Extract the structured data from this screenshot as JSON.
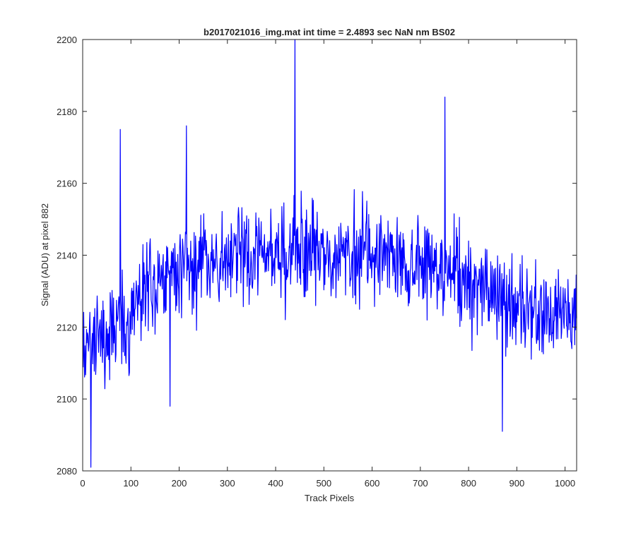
{
  "chart_data": {
    "type": "line",
    "title": "b2017021016_img.mat int time = 2.4893 sec  NaN nm BS02",
    "xlabel": "Track Pixels",
    "ylabel": "Signal (ADU) at pixel 882",
    "xlim": [
      0,
      1024
    ],
    "ylim": [
      2080,
      2200
    ],
    "xticks": [
      0,
      100,
      200,
      300,
      400,
      500,
      600,
      700,
      800,
      900,
      1000
    ],
    "yticks": [
      2080,
      2100,
      2120,
      2140,
      2160,
      2180,
      2200
    ],
    "grid": false,
    "legend": false,
    "line_color": "#0000ff",
    "series": [
      {
        "x": [
          0,
          20,
          40,
          60,
          80,
          100,
          120,
          140,
          160,
          180,
          200,
          220,
          240,
          260,
          280,
          300,
          320,
          340,
          360,
          380,
          400,
          420,
          440,
          460,
          480,
          500,
          520,
          540,
          560,
          580,
          600,
          620,
          640,
          660,
          680,
          700,
          720,
          740,
          760,
          780,
          800,
          820,
          840,
          860,
          880,
          900,
          920,
          940,
          960,
          980,
          1000,
          1020
        ],
        "values": [
          2115,
          2118,
          2114,
          2117,
          2120,
          2122,
          2127,
          2133,
          2135,
          2134,
          2136,
          2137,
          2138,
          2137,
          2139,
          2139,
          2140,
          2139,
          2141,
          2140,
          2141,
          2140,
          2142,
          2140,
          2141,
          2139,
          2141,
          2140,
          2140,
          2141,
          2139,
          2140,
          2138,
          2139,
          2137,
          2138,
          2138,
          2137,
          2136,
          2134,
          2133,
          2131,
          2130,
          2129,
          2127,
          2127,
          2125,
          2124,
          2123,
          2124,
          2125,
          2126
        ],
        "peaks": [
          {
            "x": 17,
            "y": 2081
          },
          {
            "x": 78,
            "y": 2175
          },
          {
            "x": 181,
            "y": 2098
          },
          {
            "x": 215,
            "y": 2176
          },
          {
            "x": 440,
            "y": 2200
          },
          {
            "x": 751,
            "y": 2184
          },
          {
            "x": 870,
            "y": 2091
          }
        ]
      }
    ]
  }
}
